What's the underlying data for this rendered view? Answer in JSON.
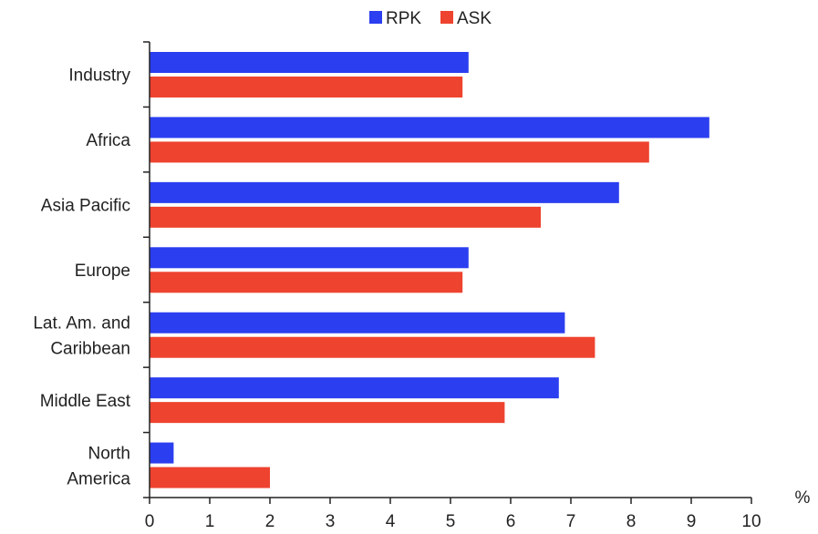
{
  "chart_data": {
    "type": "bar",
    "orientation": "horizontal",
    "categories": [
      [
        "Industry"
      ],
      [
        "Africa"
      ],
      [
        "Asia Pacific"
      ],
      [
        "Europe"
      ],
      [
        "Lat. Am. and",
        "Caribbean"
      ],
      [
        "Middle East"
      ],
      [
        "North",
        "America"
      ]
    ],
    "series": [
      {
        "name": "RPK",
        "color": "#2b3ef0",
        "values": [
          5.3,
          9.3,
          7.8,
          5.3,
          6.9,
          6.8,
          0.4
        ]
      },
      {
        "name": "ASK",
        "color": "#ee432f",
        "values": [
          5.2,
          8.3,
          6.5,
          5.2,
          7.4,
          5.9,
          2.0
        ]
      }
    ],
    "xlim": [
      0,
      10
    ],
    "xticks": [
      "0",
      "1",
      "2",
      "3",
      "4",
      "5",
      "6",
      "7",
      "8",
      "9",
      "10"
    ],
    "unit_label": "%",
    "legend_position": "top-center",
    "grid": false
  }
}
